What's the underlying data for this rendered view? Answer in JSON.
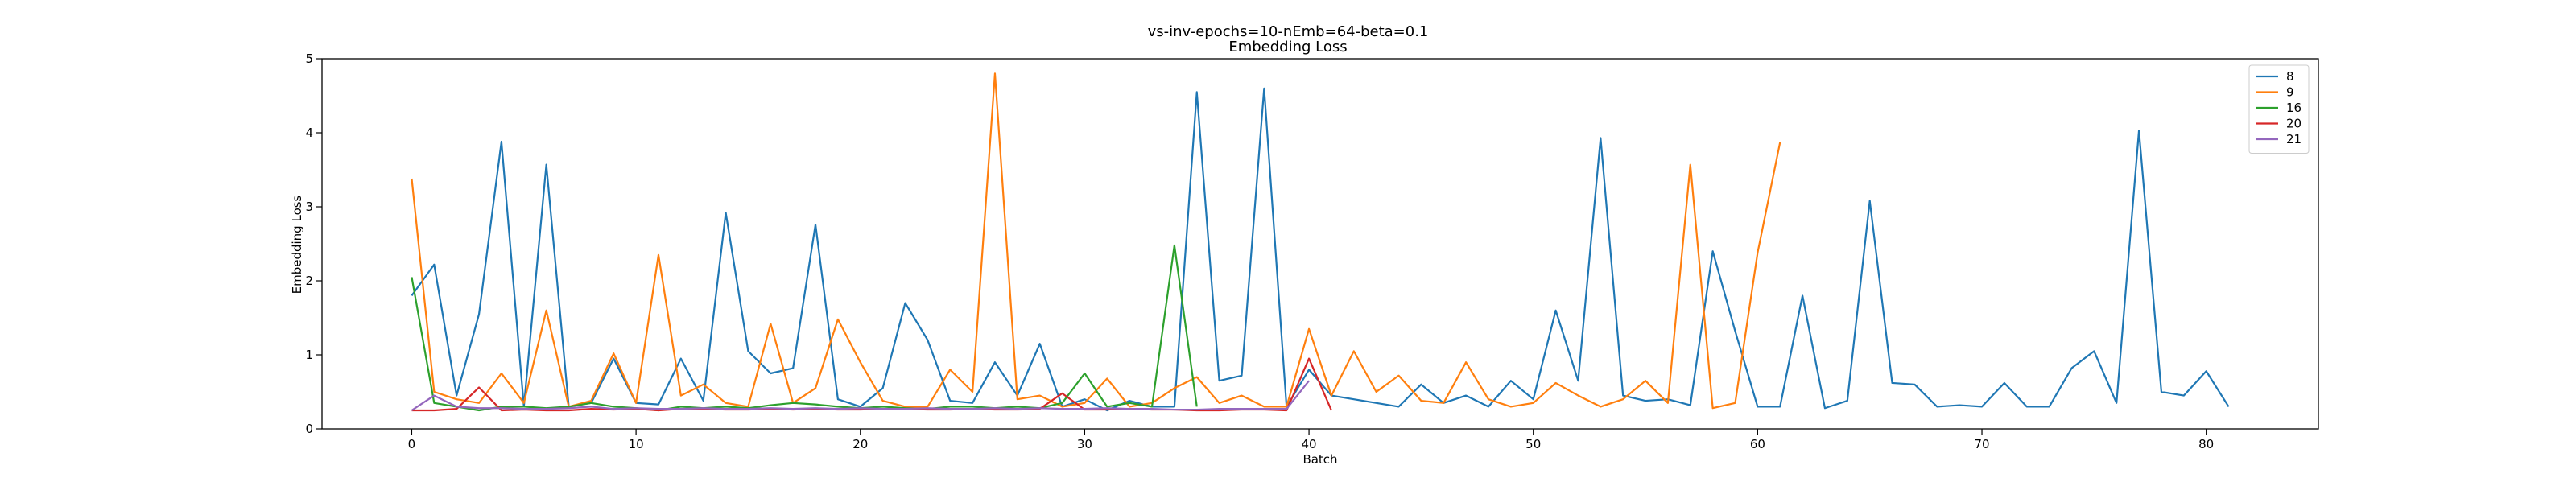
{
  "chart_data": {
    "type": "line",
    "title": "vs-inv-epochs=10-nEmb=64-beta=0.1",
    "subtitle": "Embedding Loss",
    "xlabel": "Batch",
    "ylabel": "Embedding Loss",
    "xlim": [
      -4,
      85
    ],
    "ylim": [
      0,
      5
    ],
    "xticks": [
      0,
      10,
      20,
      30,
      40,
      50,
      60,
      70,
      80
    ],
    "yticks": [
      0,
      1,
      2,
      3,
      4,
      5
    ],
    "grid": false,
    "legend_position": "top-right",
    "series": [
      {
        "name": "8",
        "color": "#1f77b4",
        "x": [
          0,
          1,
          2,
          3,
          4,
          5,
          6,
          7,
          8,
          9,
          10,
          11,
          12,
          13,
          14,
          15,
          16,
          17,
          18,
          19,
          20,
          21,
          22,
          23,
          24,
          25,
          26,
          27,
          28,
          29,
          30,
          31,
          32,
          33,
          34,
          35,
          36,
          37,
          38,
          39,
          40,
          41,
          42,
          43,
          44,
          45,
          46,
          47,
          48,
          49,
          50,
          51,
          52,
          53,
          54,
          55,
          56,
          57,
          58,
          59,
          60,
          61,
          62,
          63,
          64,
          65,
          66,
          67,
          68,
          69,
          70,
          71,
          72,
          73,
          74,
          75,
          76,
          77,
          78,
          79,
          80,
          81
        ],
        "y": [
          1.8,
          2.22,
          0.45,
          1.55,
          3.88,
          0.3,
          3.57,
          0.3,
          0.35,
          0.95,
          0.35,
          0.33,
          0.95,
          0.38,
          2.92,
          1.05,
          0.75,
          0.82,
          2.76,
          0.4,
          0.3,
          0.55,
          1.7,
          1.2,
          0.38,
          0.35,
          0.9,
          0.45,
          1.15,
          0.3,
          0.4,
          0.25,
          0.38,
          0.3,
          0.3,
          4.55,
          0.65,
          0.72,
          4.6,
          0.3,
          0.8,
          0.45,
          0.4,
          0.35,
          0.3,
          0.6,
          0.35,
          0.45,
          0.3,
          0.65,
          0.4,
          1.6,
          0.65,
          3.93,
          0.45,
          0.38,
          0.4,
          0.32,
          2.4,
          1.32,
          0.3,
          0.3,
          1.8,
          0.28,
          0.38,
          3.08,
          0.62,
          0.6,
          0.3,
          0.32,
          0.3,
          0.62,
          0.3,
          0.3,
          0.82,
          1.05,
          0.35,
          4.03,
          0.5,
          0.45,
          0.78,
          0.3
        ]
      },
      {
        "name": "9",
        "color": "#ff7f0e",
        "x": [
          0,
          1,
          2,
          3,
          4,
          5,
          6,
          7,
          8,
          9,
          10,
          11,
          12,
          13,
          14,
          15,
          16,
          17,
          18,
          19,
          20,
          21,
          22,
          23,
          24,
          25,
          26,
          27,
          28,
          29,
          30,
          31,
          32,
          33,
          34,
          35,
          36,
          37,
          38,
          39,
          40,
          41,
          42,
          43,
          44,
          45,
          46,
          47,
          48,
          49,
          50,
          51,
          52,
          53,
          54,
          55,
          56,
          57,
          58,
          59,
          60,
          61
        ],
        "y": [
          3.38,
          0.5,
          0.4,
          0.35,
          0.75,
          0.35,
          1.6,
          0.3,
          0.38,
          1.02,
          0.35,
          2.35,
          0.45,
          0.6,
          0.35,
          0.3,
          1.42,
          0.35,
          0.55,
          1.48,
          0.9,
          0.38,
          0.3,
          0.3,
          0.8,
          0.5,
          4.8,
          0.4,
          0.45,
          0.3,
          0.35,
          0.68,
          0.3,
          0.35,
          0.55,
          0.7,
          0.35,
          0.45,
          0.3,
          0.3,
          1.35,
          0.45,
          1.05,
          0.5,
          0.72,
          0.38,
          0.35,
          0.9,
          0.4,
          0.3,
          0.35,
          0.62,
          0.45,
          0.3,
          0.4,
          0.65,
          0.35,
          3.57,
          0.28,
          0.35,
          2.38,
          3.87
        ]
      },
      {
        "name": "16",
        "color": "#2ca02c",
        "x": [
          0,
          1,
          2,
          3,
          4,
          5,
          6,
          7,
          8,
          9,
          10,
          11,
          12,
          13,
          14,
          15,
          16,
          17,
          18,
          19,
          20,
          21,
          22,
          23,
          24,
          25,
          26,
          27,
          28,
          29,
          30,
          31,
          32,
          33,
          34,
          35
        ],
        "y": [
          2.05,
          0.35,
          0.3,
          0.25,
          0.3,
          0.3,
          0.28,
          0.3,
          0.35,
          0.3,
          0.28,
          0.25,
          0.3,
          0.28,
          0.3,
          0.28,
          0.32,
          0.35,
          0.33,
          0.3,
          0.28,
          0.3,
          0.28,
          0.27,
          0.3,
          0.3,
          0.28,
          0.3,
          0.28,
          0.35,
          0.75,
          0.3,
          0.35,
          0.3,
          2.48,
          0.3
        ]
      },
      {
        "name": "20",
        "color": "#d62728",
        "x": [
          0,
          1,
          2,
          3,
          4,
          5,
          6,
          7,
          8,
          9,
          10,
          11,
          12,
          13,
          14,
          15,
          16,
          17,
          18,
          19,
          20,
          21,
          22,
          23,
          24,
          25,
          26,
          27,
          28,
          29,
          30,
          31,
          32,
          33,
          34,
          35,
          36,
          37,
          38,
          39,
          40,
          41
        ],
        "y": [
          0.25,
          0.25,
          0.27,
          0.56,
          0.25,
          0.26,
          0.25,
          0.25,
          0.27,
          0.26,
          0.27,
          0.25,
          0.27,
          0.27,
          0.26,
          0.26,
          0.27,
          0.26,
          0.27,
          0.26,
          0.26,
          0.27,
          0.27,
          0.26,
          0.26,
          0.27,
          0.26,
          0.26,
          0.27,
          0.48,
          0.26,
          0.26,
          0.27,
          0.26,
          0.26,
          0.25,
          0.25,
          0.26,
          0.26,
          0.25,
          0.95,
          0.25
        ]
      },
      {
        "name": "21",
        "color": "#9467bd",
        "x": [
          0,
          1,
          2,
          3,
          4,
          5,
          6,
          7,
          8,
          9,
          10,
          11,
          12,
          13,
          14,
          15,
          16,
          17,
          18,
          19,
          20,
          21,
          22,
          23,
          24,
          25,
          26,
          27,
          28,
          29,
          30,
          31,
          32,
          33,
          34,
          35,
          36,
          37,
          38,
          39,
          40
        ],
        "y": [
          0.25,
          0.45,
          0.3,
          0.28,
          0.28,
          0.27,
          0.27,
          0.28,
          0.3,
          0.27,
          0.28,
          0.27,
          0.27,
          0.28,
          0.27,
          0.27,
          0.28,
          0.27,
          0.28,
          0.27,
          0.28,
          0.27,
          0.27,
          0.28,
          0.27,
          0.27,
          0.28,
          0.27,
          0.28,
          0.27,
          0.27,
          0.28,
          0.27,
          0.27,
          0.26,
          0.26,
          0.27,
          0.27,
          0.27,
          0.27,
          0.65
        ]
      }
    ]
  }
}
